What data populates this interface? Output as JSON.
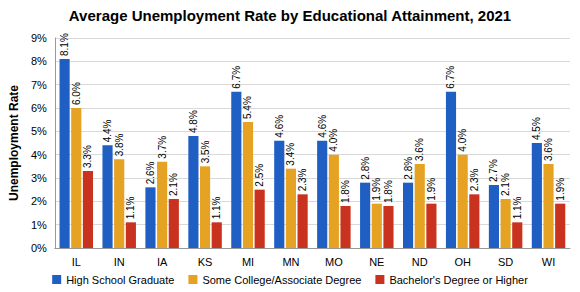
{
  "chart_data": {
    "type": "bar",
    "title": "Average Unemployment Rate by Educational Attainment, 2021",
    "y_label": "Unemployment Rate",
    "categories": [
      "IL",
      "IN",
      "IA",
      "KS",
      "MI",
      "MN",
      "MO",
      "NE",
      "ND",
      "OH",
      "SD",
      "WI"
    ],
    "series": [
      {
        "name": "High School Graduate",
        "color": "#1f5fc4",
        "values": [
          8.1,
          4.4,
          2.6,
          4.8,
          6.7,
          4.6,
          4.6,
          2.8,
          2.8,
          6.7,
          2.7,
          4.5
        ],
        "value_labels": [
          "8.1%",
          "4.4%",
          "2.6%",
          "4.8%",
          "6.7%",
          "4.6%",
          "4.6%",
          "2.8%",
          "2.8%",
          "6.7%",
          "2.7%",
          "4.5%"
        ]
      },
      {
        "name": "Some College/Associate Degree",
        "color": "#e6a323",
        "values": [
          6.0,
          3.8,
          3.7,
          3.5,
          5.4,
          3.4,
          4.0,
          1.9,
          3.6,
          4.0,
          2.1,
          3.6
        ],
        "value_labels": [
          "6.0%",
          "3.8%",
          "3.7%",
          "3.5%",
          "5.4%",
          "3.4%",
          "4.0%",
          "1.9%",
          "3.6%",
          "4.0%",
          "2.1%",
          "3.6%"
        ]
      },
      {
        "name": "Bachelor's Degree or Higher",
        "color": "#c8321f",
        "values": [
          3.3,
          1.1,
          2.1,
          1.1,
          2.5,
          2.3,
          1.8,
          1.8,
          1.9,
          2.3,
          1.1,
          1.9
        ],
        "value_labels": [
          "3.3%",
          "1.1%",
          "2.1%",
          "1.1%",
          "2.5%",
          "2.3%",
          "1.8%",
          "1.8%",
          "1.9%",
          "2.3%",
          "1.1%",
          "1.9%"
        ]
      }
    ],
    "ylim": [
      0,
      9
    ],
    "yticks": [
      {
        "value": 0,
        "label": "0%"
      },
      {
        "value": 1,
        "label": "1%"
      },
      {
        "value": 2,
        "label": "2%"
      },
      {
        "value": 3,
        "label": "3%"
      },
      {
        "value": 4,
        "label": "4%"
      },
      {
        "value": 5,
        "label": "5%"
      },
      {
        "value": 6,
        "label": "6%"
      },
      {
        "value": 7,
        "label": "7%"
      },
      {
        "value": 8,
        "label": "8%"
      },
      {
        "value": 9,
        "label": "9%"
      }
    ],
    "grid": true,
    "legend": "bottom",
    "data_labels": true
  }
}
